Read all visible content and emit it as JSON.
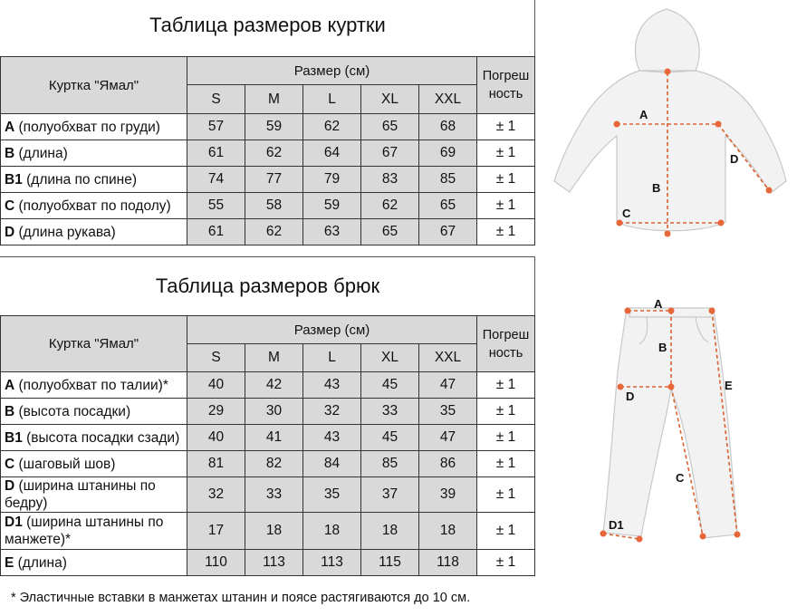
{
  "jacket": {
    "title": "Таблица размеров куртки",
    "product_label": "Куртка \"Ямал\"",
    "size_header": "Размер (см)",
    "tolerance_header": "Погрешность",
    "sizes": [
      "S",
      "M",
      "L",
      "XL",
      "XXL"
    ],
    "rows": [
      {
        "code": "A",
        "desc": " (полуобхват по груди)",
        "values": [
          "57",
          "59",
          "62",
          "65",
          "68"
        ],
        "tol": "± 1"
      },
      {
        "code": "B",
        "desc": " (длина)",
        "values": [
          "61",
          "62",
          "64",
          "67",
          "69"
        ],
        "tol": "± 1"
      },
      {
        "code": "B1",
        "desc": " (длина по спине)",
        "values": [
          "74",
          "77",
          "79",
          "83",
          "85"
        ],
        "tol": "± 1"
      },
      {
        "code": "C",
        "desc": " (полуобхват по подолу)",
        "values": [
          "55",
          "58",
          "59",
          "62",
          "65"
        ],
        "tol": "± 1"
      },
      {
        "code": "D",
        "desc": " (длина рукава)",
        "values": [
          "61",
          "62",
          "63",
          "65",
          "67"
        ],
        "tol": "± 1"
      }
    ]
  },
  "pants": {
    "title": "Таблица размеров брюк",
    "product_label": "Куртка \"Ямал\"",
    "size_header": "Размер (см)",
    "tolerance_header": "Погрешность",
    "sizes": [
      "S",
      "M",
      "L",
      "XL",
      "XXL"
    ],
    "rows": [
      {
        "code": "A",
        "desc": " (полуобхват по талии)*",
        "values": [
          "40",
          "42",
          "43",
          "45",
          "47"
        ],
        "tol": "± 1"
      },
      {
        "code": "B",
        "desc": " (высота посадки)",
        "values": [
          "29",
          "30",
          "32",
          "33",
          "35"
        ],
        "tol": "± 1"
      },
      {
        "code": "B1",
        "desc": " (высота посадки сзади)",
        "values": [
          "40",
          "41",
          "43",
          "45",
          "47"
        ],
        "tol": "± 1"
      },
      {
        "code": "C",
        "desc": " (шаговый шов)",
        "values": [
          "81",
          "82",
          "84",
          "85",
          "86"
        ],
        "tol": "± 1"
      },
      {
        "code": "D",
        "desc": " (ширина штанины по бедру)",
        "values": [
          "32",
          "33",
          "35",
          "37",
          "39"
        ],
        "tol": "± 1"
      },
      {
        "code": "D1",
        "desc": " (ширина штанины по манжете)*",
        "values": [
          "17",
          "18",
          "18",
          "18",
          "18"
        ],
        "tol": "± 1"
      },
      {
        "code": "E",
        "desc": " (длина)",
        "values": [
          "110",
          "113",
          "113",
          "115",
          "118"
        ],
        "tol": "± 1"
      }
    ]
  },
  "footnote": "* Эластичные вставки в манжетах штанин и поясе растягиваются до 10 см.",
  "diagram_jacket": {
    "labels": [
      "A",
      "B",
      "C",
      "D"
    ]
  },
  "diagram_pants": {
    "labels": [
      "A",
      "B",
      "C",
      "D",
      "D1",
      "E"
    ]
  },
  "colors": {
    "header_gray": "#d9d9d9",
    "marker": "#e8663a",
    "figure_fill": "#f2f2f2"
  }
}
